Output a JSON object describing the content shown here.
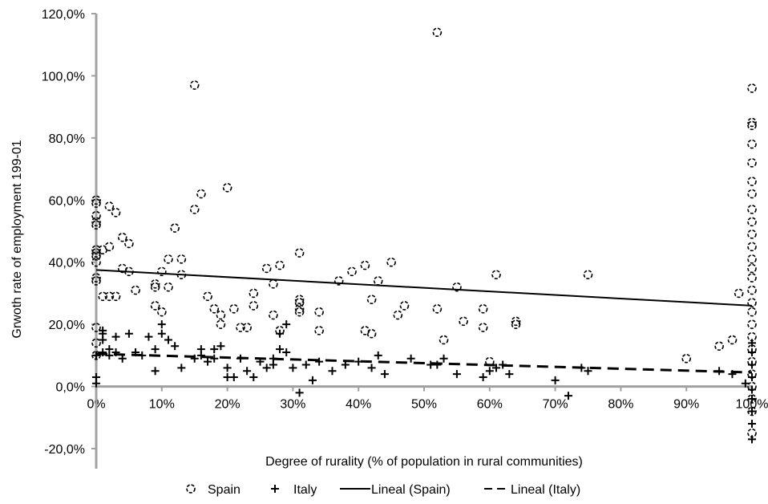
{
  "chart_data": {
    "type": "scatter",
    "title": "",
    "xlabel": "Degree of rurality (% of  population in rural communities)",
    "ylabel": "Grwoth rate of employment 199-01",
    "xlim": [
      0,
      100
    ],
    "ylim": [
      -20,
      120
    ],
    "x_ticks": [
      "0%",
      "10%",
      "20%",
      "30%",
      "40%",
      "50%",
      "60%",
      "70%",
      "80%",
      "90%",
      "100%"
    ],
    "y_ticks": [
      "-20,0%",
      "0,0%",
      "20,0%",
      "40,0%",
      "60,0%",
      "80,0%",
      "100,0%",
      "120,0%"
    ],
    "legend_position": "bottom",
    "series": [
      {
        "name": "Spain",
        "marker": "circle",
        "points": [
          [
            0,
            60
          ],
          [
            0,
            59
          ],
          [
            0,
            55
          ],
          [
            0,
            53
          ],
          [
            0,
            52
          ],
          [
            0,
            44
          ],
          [
            0,
            43
          ],
          [
            0,
            42
          ],
          [
            0,
            40
          ],
          [
            0,
            35
          ],
          [
            0,
            34
          ],
          [
            0,
            19
          ],
          [
            0,
            14
          ],
          [
            0,
            10
          ],
          [
            1,
            44
          ],
          [
            1,
            29
          ],
          [
            2,
            29
          ],
          [
            2,
            45
          ],
          [
            2,
            58
          ],
          [
            3,
            56
          ],
          [
            3,
            29
          ],
          [
            4,
            48
          ],
          [
            4,
            38
          ],
          [
            5,
            46
          ],
          [
            5,
            37
          ],
          [
            6,
            31
          ],
          [
            9,
            26
          ],
          [
            9,
            33
          ],
          [
            9,
            32
          ],
          [
            10,
            37
          ],
          [
            10,
            24
          ],
          [
            11,
            41
          ],
          [
            11,
            32
          ],
          [
            12,
            51
          ],
          [
            13,
            41
          ],
          [
            13,
            36
          ],
          [
            15,
            57
          ],
          [
            15,
            97
          ],
          [
            16,
            62
          ],
          [
            17,
            29
          ],
          [
            18,
            25
          ],
          [
            19,
            23
          ],
          [
            19,
            20
          ],
          [
            20,
            64
          ],
          [
            21,
            25
          ],
          [
            22,
            19
          ],
          [
            23,
            19
          ],
          [
            24,
            26
          ],
          [
            24,
            30
          ],
          [
            26,
            38
          ],
          [
            27,
            23
          ],
          [
            27,
            33
          ],
          [
            28,
            39
          ],
          [
            28,
            18
          ],
          [
            31,
            43
          ],
          [
            31,
            27
          ],
          [
            31,
            25
          ],
          [
            31,
            28
          ],
          [
            31,
            24
          ],
          [
            34,
            24
          ],
          [
            34,
            18
          ],
          [
            37,
            34
          ],
          [
            39,
            37
          ],
          [
            41,
            39
          ],
          [
            41,
            18
          ],
          [
            42,
            28
          ],
          [
            42,
            17
          ],
          [
            43,
            34
          ],
          [
            45,
            40
          ],
          [
            46,
            23
          ],
          [
            47,
            26
          ],
          [
            52,
            114
          ],
          [
            52,
            25
          ],
          [
            53,
            15
          ],
          [
            55,
            32
          ],
          [
            56,
            21
          ],
          [
            59,
            25
          ],
          [
            59,
            19
          ],
          [
            60,
            8
          ],
          [
            61,
            36
          ],
          [
            64,
            21
          ],
          [
            64,
            20
          ],
          [
            75,
            36
          ],
          [
            90,
            9
          ],
          [
            95,
            13
          ],
          [
            97,
            15
          ],
          [
            98,
            30
          ],
          [
            100,
            96
          ],
          [
            100,
            85
          ],
          [
            100,
            84
          ],
          [
            100,
            78
          ],
          [
            100,
            72
          ],
          [
            100,
            66
          ],
          [
            100,
            62
          ],
          [
            100,
            57
          ],
          [
            100,
            53
          ],
          [
            100,
            49
          ],
          [
            100,
            45
          ],
          [
            100,
            41
          ],
          [
            100,
            38
          ],
          [
            100,
            35
          ],
          [
            100,
            31
          ],
          [
            100,
            27
          ],
          [
            100,
            24
          ],
          [
            100,
            20
          ],
          [
            100,
            16
          ],
          [
            100,
            12
          ],
          [
            100,
            8
          ],
          [
            100,
            4
          ],
          [
            100,
            0
          ],
          [
            100,
            -4
          ],
          [
            100,
            -8
          ],
          [
            100,
            -15
          ]
        ]
      },
      {
        "name": "Italy",
        "marker": "plus",
        "points": [
          [
            0,
            3
          ],
          [
            0,
            1
          ],
          [
            0,
            10
          ],
          [
            1,
            15
          ],
          [
            1,
            17
          ],
          [
            1,
            18
          ],
          [
            1,
            11
          ],
          [
            2,
            12
          ],
          [
            2,
            10
          ],
          [
            3,
            16
          ],
          [
            3,
            11
          ],
          [
            4,
            9
          ],
          [
            5,
            17
          ],
          [
            6,
            11
          ],
          [
            7,
            10
          ],
          [
            8,
            16
          ],
          [
            9,
            12
          ],
          [
            9,
            5
          ],
          [
            10,
            20
          ],
          [
            10,
            17
          ],
          [
            11,
            15
          ],
          [
            12,
            13
          ],
          [
            13,
            6
          ],
          [
            15,
            9
          ],
          [
            16,
            12
          ],
          [
            16,
            10
          ],
          [
            17,
            8
          ],
          [
            18,
            12
          ],
          [
            18,
            9
          ],
          [
            19,
            13
          ],
          [
            20,
            6
          ],
          [
            20,
            3
          ],
          [
            21,
            3
          ],
          [
            22,
            9
          ],
          [
            23,
            5
          ],
          [
            24,
            3
          ],
          [
            25,
            8
          ],
          [
            26,
            6
          ],
          [
            27,
            9
          ],
          [
            27,
            7
          ],
          [
            28,
            17
          ],
          [
            28,
            12
          ],
          [
            29,
            20
          ],
          [
            29,
            11
          ],
          [
            30,
            6
          ],
          [
            31,
            -2
          ],
          [
            32,
            7
          ],
          [
            33,
            2
          ],
          [
            34,
            8
          ],
          [
            36,
            5
          ],
          [
            38,
            7
          ],
          [
            40,
            8
          ],
          [
            42,
            6
          ],
          [
            43,
            10
          ],
          [
            44,
            4
          ],
          [
            48,
            9
          ],
          [
            51,
            7
          ],
          [
            52,
            7
          ],
          [
            53,
            9
          ],
          [
            55,
            4
          ],
          [
            59,
            3
          ],
          [
            60,
            5
          ],
          [
            61,
            6
          ],
          [
            62,
            7
          ],
          [
            63,
            4
          ],
          [
            70,
            2
          ],
          [
            72,
            -3
          ],
          [
            74,
            6
          ],
          [
            75,
            5
          ],
          [
            95,
            5
          ],
          [
            97,
            4
          ],
          [
            99,
            1
          ],
          [
            100,
            14
          ],
          [
            100,
            11
          ],
          [
            100,
            7
          ],
          [
            100,
            3
          ],
          [
            100,
            -1
          ],
          [
            100,
            -4
          ],
          [
            100,
            -8
          ],
          [
            100,
            -12
          ],
          [
            100,
            -17
          ]
        ]
      }
    ],
    "trendlines": [
      {
        "name": "Lineal (Spain)",
        "style": "solid",
        "x": [
          0,
          100
        ],
        "y": [
          37.5,
          26
        ]
      },
      {
        "name": "Lineal (Italy)",
        "style": "dashed",
        "x": [
          0,
          100
        ],
        "y": [
          10.5,
          4.5
        ]
      }
    ]
  },
  "legend": {
    "spain": "Spain",
    "italy": "Italy",
    "lineal_spain": "Lineal (Spain)",
    "lineal_italy": "Lineal (Italy)"
  }
}
